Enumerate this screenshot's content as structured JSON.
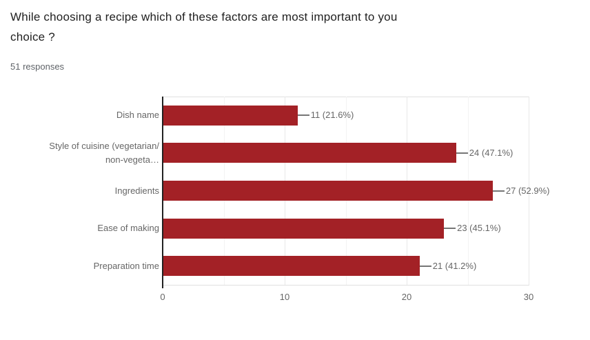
{
  "header": {
    "title_lines": [
      "While choosing a recipe which of these factors are most important to you",
      "choice ?"
    ],
    "title": "While choosing a recipe which of these factors are most important to you choice ?",
    "responses": "51 responses"
  },
  "colors": {
    "bar": "#a32126",
    "title_text": "#212121",
    "chart_text": "#666666",
    "leader_line": "#757575"
  },
  "chart_data": {
    "type": "bar",
    "orientation": "horizontal",
    "title": "While choosing a recipe which of these factors are most important to you choice ?",
    "total_responses": 51,
    "categories": [
      "Dish name",
      "Style of cuisine (vegetarian/ non-vegeta…",
      "Ingredients",
      "Ease of making",
      "Preparation time"
    ],
    "category_lines": [
      [
        "Dish name"
      ],
      [
        "Style of cuisine (vegetarian/",
        "non-vegeta…"
      ],
      [
        "Ingredients"
      ],
      [
        "Ease of making"
      ],
      [
        "Preparation time"
      ]
    ],
    "values": [
      11,
      24,
      27,
      23,
      21
    ],
    "percentages": [
      21.6,
      47.1,
      52.9,
      45.1,
      41.2
    ],
    "value_labels": [
      "11 (21.6%)",
      "24 (47.1%)",
      "27 (52.9%)",
      "23 (45.1%)",
      "21 (41.2%)"
    ],
    "xlim": [
      0,
      30
    ],
    "x_ticks": [
      0,
      10,
      20,
      30
    ],
    "grid": "on",
    "xlabel": "",
    "ylabel": ""
  }
}
